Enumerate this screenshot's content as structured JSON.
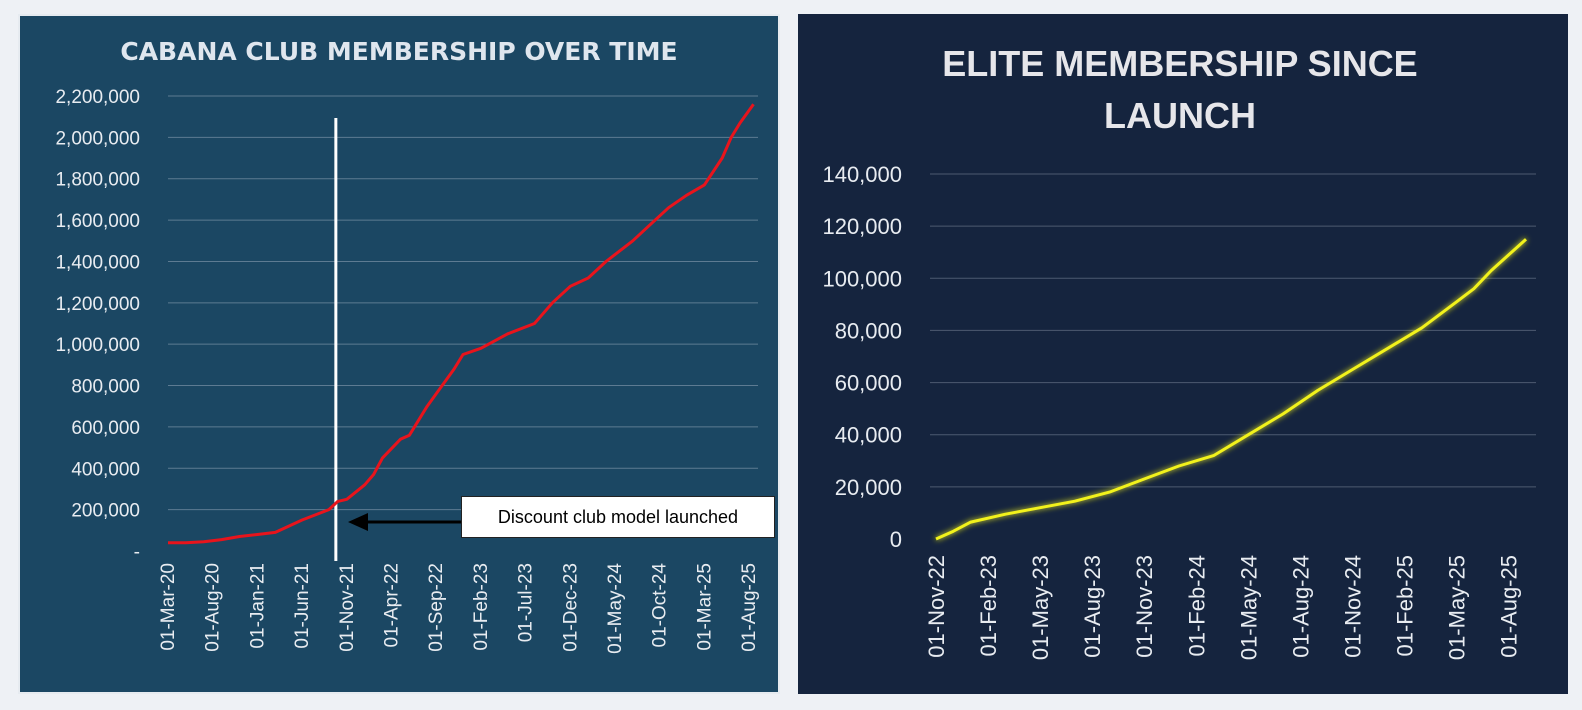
{
  "chart_data": [
    {
      "type": "line",
      "title": "CABANA CLUB MEMBERSHIP OVER TIME",
      "xlabel": "",
      "ylabel": "",
      "ylim": [
        0,
        2200000
      ],
      "yticks": [
        0,
        200000,
        400000,
        600000,
        800000,
        1000000,
        1200000,
        1400000,
        1600000,
        1800000,
        2000000,
        2200000
      ],
      "ytick_labels": [
        "-",
        "200,000",
        "400,000",
        "600,000",
        "800,000",
        "1,000,000",
        "1,200,000",
        "1,400,000",
        "1,600,000",
        "1,800,000",
        "2,000,000",
        "2,200,000"
      ],
      "xtick_labels": [
        "01-Mar-20",
        "01-Aug-20",
        "01-Jan-21",
        "01-Jun-21",
        "01-Nov-21",
        "01-Apr-22",
        "01-Sep-22",
        "01-Feb-23",
        "01-Jul-23",
        "01-Dec-23",
        "01-May-24",
        "01-Oct-24",
        "01-Mar-25",
        "01-Aug-25"
      ],
      "x_months": [
        0,
        5,
        10,
        15,
        20,
        25,
        30,
        35,
        40,
        45,
        50,
        55,
        60,
        65
      ],
      "x_range_months": [
        0,
        66
      ],
      "series": [
        {
          "name": "Membership",
          "color": "#e8141c",
          "points": [
            [
              0,
              40000
            ],
            [
              2,
              40000
            ],
            [
              4,
              45000
            ],
            [
              6,
              55000
            ],
            [
              8,
              70000
            ],
            [
              10,
              80000
            ],
            [
              12,
              90000
            ],
            [
              15,
              150000
            ],
            [
              18,
              200000
            ],
            [
              19,
              240000
            ],
            [
              20,
              250000
            ],
            [
              22,
              320000
            ],
            [
              23,
              370000
            ],
            [
              24,
              450000
            ],
            [
              26,
              540000
            ],
            [
              27,
              560000
            ],
            [
              29,
              700000
            ],
            [
              30,
              760000
            ],
            [
              32,
              880000
            ],
            [
              33,
              950000
            ],
            [
              35,
              980000
            ],
            [
              38,
              1050000
            ],
            [
              41,
              1100000
            ],
            [
              43,
              1200000
            ],
            [
              45,
              1280000
            ],
            [
              47,
              1320000
            ],
            [
              49,
              1400000
            ],
            [
              52,
              1500000
            ],
            [
              54,
              1580000
            ],
            [
              56,
              1660000
            ],
            [
              58,
              1720000
            ],
            [
              60,
              1770000
            ],
            [
              62,
              1900000
            ],
            [
              63,
              2000000
            ],
            [
              64,
              2070000
            ],
            [
              65.5,
              2160000
            ]
          ]
        }
      ],
      "marker_line_month": 19,
      "annotation": "Discount club model launched",
      "annotation_color": "#ffffff",
      "arrow_color": "#000000"
    },
    {
      "type": "line",
      "title_lines": [
        "ELITE MEMBERSHIP SINCE",
        "LAUNCH"
      ],
      "xlabel": "",
      "ylabel": "",
      "ylim": [
        0,
        140000
      ],
      "yticks": [
        0,
        20000,
        40000,
        60000,
        80000,
        100000,
        120000,
        140000
      ],
      "ytick_labels": [
        "0",
        "20,000",
        "40,000",
        "60,000",
        "80,000",
        "100,000",
        "120,000",
        "140,000"
      ],
      "xtick_labels": [
        "01-Nov-22",
        "01-Feb-23",
        "01-May-23",
        "01-Aug-23",
        "01-Nov-23",
        "01-Feb-24",
        "01-May-24",
        "01-Aug-24",
        "01-Nov-24",
        "01-Feb-25",
        "01-May-25",
        "01-Aug-25"
      ],
      "x_months": [
        0,
        3,
        6,
        9,
        12,
        15,
        18,
        21,
        24,
        27,
        30,
        33
      ],
      "x_range_months": [
        0,
        34
      ],
      "series": [
        {
          "name": "Elite Membership",
          "color": "#f2f21a",
          "points": [
            [
              0,
              0
            ],
            [
              1,
              3000
            ],
            [
              2,
              6500
            ],
            [
              4,
              9500
            ],
            [
              6,
              12000
            ],
            [
              8,
              14500
            ],
            [
              10,
              18000
            ],
            [
              12,
              23000
            ],
            [
              14,
              28000
            ],
            [
              16,
              32000
            ],
            [
              18,
              40000
            ],
            [
              20,
              48000
            ],
            [
              22,
              57000
            ],
            [
              24,
              65000
            ],
            [
              26,
              73000
            ],
            [
              28,
              81000
            ],
            [
              30,
              91000
            ],
            [
              31,
              96000
            ],
            [
              32,
              103000
            ],
            [
              34,
              115000
            ]
          ]
        }
      ]
    }
  ]
}
